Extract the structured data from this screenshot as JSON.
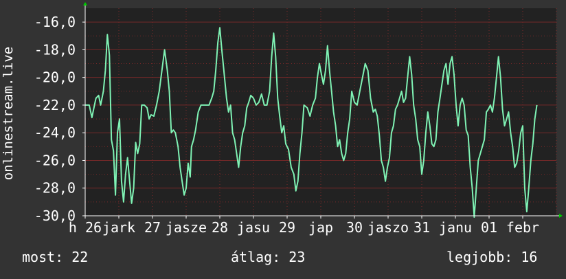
{
  "colors": {
    "background": "#333333",
    "plot_background": "#222222",
    "grid": "#8a2a2a",
    "line": "#7ff2b4",
    "text": "#ffffff",
    "axis_arrow": "#00cc00"
  },
  "chart_data": {
    "type": "line",
    "title": "",
    "ylabel": "onlinestream.live",
    "ylim": [
      -30,
      -15
    ],
    "y_ticks": [
      {
        "value": -16,
        "label": "-16,0"
      },
      {
        "value": -18,
        "label": "-18,0"
      },
      {
        "value": -20,
        "label": "-20,0"
      },
      {
        "value": -22,
        "label": "-22,0"
      },
      {
        "value": -24,
        "label": "-24,0"
      },
      {
        "value": -26,
        "label": "-26,0"
      },
      {
        "value": -28,
        "label": "-28,0"
      },
      {
        "value": -30,
        "label": "-30,0"
      }
    ],
    "x_ticks": [
      {
        "x": 0.0,
        "label": "h 26"
      },
      {
        "x": 0.5,
        "label": "jark"
      },
      {
        "x": 1.0,
        "label": "27"
      },
      {
        "x": 1.5,
        "label": "jasze"
      },
      {
        "x": 2.0,
        "label": "28"
      },
      {
        "x": 2.5,
        "label": "jasu"
      },
      {
        "x": 3.0,
        "label": "29"
      },
      {
        "x": 3.5,
        "label": "jap"
      },
      {
        "x": 4.0,
        "label": "30"
      },
      {
        "x": 4.5,
        "label": "jaszo"
      },
      {
        "x": 5.0,
        "label": "31"
      },
      {
        "x": 5.5,
        "label": "janu"
      },
      {
        "x": 6.0,
        "label": "01"
      },
      {
        "x": 6.5,
        "label": "febr"
      }
    ],
    "xlim": [
      0,
      7.0
    ],
    "grid": true,
    "series": [
      {
        "values": [
          [
            0.0,
            -22.0
          ],
          [
            0.06,
            -22.0
          ],
          [
            0.1,
            -22.9
          ],
          [
            0.13,
            -22.2
          ],
          [
            0.16,
            -21.5
          ],
          [
            0.2,
            -21.3
          ],
          [
            0.23,
            -22.0
          ],
          [
            0.27,
            -21.0
          ],
          [
            0.3,
            -19.5
          ],
          [
            0.33,
            -16.9
          ],
          [
            0.36,
            -18.4
          ],
          [
            0.39,
            -24.5
          ],
          [
            0.42,
            -25.3
          ],
          [
            0.45,
            -28.5
          ],
          [
            0.48,
            -24.0
          ],
          [
            0.51,
            -23.0
          ],
          [
            0.54,
            -27.5
          ],
          [
            0.57,
            -29.0
          ],
          [
            0.6,
            -27.0
          ],
          [
            0.63,
            -25.8
          ],
          [
            0.66,
            -27.5
          ],
          [
            0.69,
            -29.1
          ],
          [
            0.72,
            -28.0
          ],
          [
            0.75,
            -24.7
          ],
          [
            0.78,
            -25.5
          ],
          [
            0.81,
            -24.8
          ],
          [
            0.84,
            -22.0
          ],
          [
            0.88,
            -22.0
          ],
          [
            0.92,
            -22.2
          ],
          [
            0.95,
            -23.0
          ],
          [
            0.98,
            -22.7
          ],
          [
            1.02,
            -22.8
          ],
          [
            1.06,
            -22.0
          ],
          [
            1.1,
            -21.0
          ],
          [
            1.14,
            -19.5
          ],
          [
            1.18,
            -18.0
          ],
          [
            1.22,
            -19.5
          ],
          [
            1.25,
            -21.0
          ],
          [
            1.28,
            -24.0
          ],
          [
            1.31,
            -23.8
          ],
          [
            1.34,
            -24.0
          ],
          [
            1.38,
            -25.0
          ],
          [
            1.41,
            -26.5
          ],
          [
            1.44,
            -27.5
          ],
          [
            1.47,
            -28.5
          ],
          [
            1.5,
            -28.0
          ],
          [
            1.53,
            -26.2
          ],
          [
            1.56,
            -27.2
          ],
          [
            1.58,
            -25.0
          ],
          [
            1.61,
            -24.5
          ],
          [
            1.64,
            -23.8
          ],
          [
            1.68,
            -22.5
          ],
          [
            1.72,
            -22.0
          ],
          [
            1.76,
            -22.0
          ],
          [
            1.8,
            -22.0
          ],
          [
            1.84,
            -22.0
          ],
          [
            1.88,
            -21.5
          ],
          [
            1.91,
            -21.0
          ],
          [
            1.94,
            -19.5
          ],
          [
            1.97,
            -17.5
          ],
          [
            2.0,
            -16.4
          ],
          [
            2.03,
            -18.0
          ],
          [
            2.06,
            -19.5
          ],
          [
            2.1,
            -21.5
          ],
          [
            2.13,
            -22.5
          ],
          [
            2.16,
            -22.0
          ],
          [
            2.19,
            -24.0
          ],
          [
            2.22,
            -24.5
          ],
          [
            2.25,
            -25.5
          ],
          [
            2.28,
            -26.5
          ],
          [
            2.31,
            -25.0
          ],
          [
            2.34,
            -24.0
          ],
          [
            2.37,
            -23.5
          ],
          [
            2.4,
            -22.2
          ],
          [
            2.43,
            -21.8
          ],
          [
            2.46,
            -21.3
          ],
          [
            2.5,
            -21.5
          ],
          [
            2.54,
            -22.0
          ],
          [
            2.58,
            -21.8
          ],
          [
            2.62,
            -21.2
          ],
          [
            2.66,
            -22.0
          ],
          [
            2.7,
            -22.0
          ],
          [
            2.74,
            -21.0
          ],
          [
            2.77,
            -18.5
          ],
          [
            2.8,
            -16.8
          ],
          [
            2.83,
            -18.5
          ],
          [
            2.86,
            -21.5
          ],
          [
            2.89,
            -22.8
          ],
          [
            2.92,
            -24.0
          ],
          [
            2.95,
            -23.5
          ],
          [
            2.98,
            -24.8
          ],
          [
            3.02,
            -25.2
          ],
          [
            3.06,
            -26.5
          ],
          [
            3.1,
            -27.0
          ],
          [
            3.13,
            -28.2
          ],
          [
            3.16,
            -27.5
          ],
          [
            3.19,
            -25.5
          ],
          [
            3.22,
            -24.0
          ],
          [
            3.25,
            -22.0
          ],
          [
            3.3,
            -22.2
          ],
          [
            3.34,
            -22.8
          ],
          [
            3.38,
            -22.0
          ],
          [
            3.42,
            -21.5
          ],
          [
            3.45,
            -20.0
          ],
          [
            3.48,
            -19.0
          ],
          [
            3.51,
            -19.8
          ],
          [
            3.54,
            -20.5
          ],
          [
            3.57,
            -19.5
          ],
          [
            3.6,
            -17.7
          ],
          [
            3.63,
            -19.5
          ],
          [
            3.66,
            -21.0
          ],
          [
            3.69,
            -22.5
          ],
          [
            3.72,
            -23.5
          ],
          [
            3.75,
            -25.0
          ],
          [
            3.78,
            -24.5
          ],
          [
            3.81,
            -25.5
          ],
          [
            3.84,
            -26.0
          ],
          [
            3.87,
            -25.5
          ],
          [
            3.9,
            -24.0
          ],
          [
            3.93,
            -23.0
          ],
          [
            3.96,
            -21.0
          ],
          [
            4.0,
            -21.8
          ],
          [
            4.04,
            -22.0
          ],
          [
            4.08,
            -21.0
          ],
          [
            4.12,
            -20.0
          ],
          [
            4.16,
            -19.0
          ],
          [
            4.2,
            -19.5
          ],
          [
            4.24,
            -21.5
          ],
          [
            4.28,
            -22.5
          ],
          [
            4.31,
            -22.3
          ],
          [
            4.34,
            -22.8
          ],
          [
            4.37,
            -24.2
          ],
          [
            4.4,
            -26.0
          ],
          [
            4.43,
            -26.5
          ],
          [
            4.46,
            -27.5
          ],
          [
            4.49,
            -26.5
          ],
          [
            4.52,
            -25.8
          ],
          [
            4.55,
            -24.0
          ],
          [
            4.58,
            -23.5
          ],
          [
            4.61,
            -22.3
          ],
          [
            4.64,
            -22.0
          ],
          [
            4.67,
            -21.5
          ],
          [
            4.7,
            -21.0
          ],
          [
            4.73,
            -21.8
          ],
          [
            4.76,
            -21.5
          ],
          [
            4.79,
            -20.0
          ],
          [
            4.82,
            -18.5
          ],
          [
            4.85,
            -19.8
          ],
          [
            4.88,
            -22.0
          ],
          [
            4.91,
            -23.0
          ],
          [
            4.94,
            -24.5
          ],
          [
            4.97,
            -25.0
          ],
          [
            5.0,
            -27.0
          ],
          [
            5.03,
            -26.0
          ],
          [
            5.06,
            -24.0
          ],
          [
            5.09,
            -22.5
          ],
          [
            5.12,
            -23.5
          ],
          [
            5.15,
            -24.8
          ],
          [
            5.18,
            -25.0
          ],
          [
            5.21,
            -24.5
          ],
          [
            5.24,
            -22.5
          ],
          [
            5.27,
            -21.5
          ],
          [
            5.3,
            -20.5
          ],
          [
            5.33,
            -19.5
          ],
          [
            5.36,
            -19.0
          ],
          [
            5.39,
            -20.5
          ],
          [
            5.42,
            -19.0
          ],
          [
            5.45,
            -18.5
          ],
          [
            5.48,
            -19.8
          ],
          [
            5.51,
            -22.0
          ],
          [
            5.54,
            -23.5
          ],
          [
            5.57,
            -22.0
          ],
          [
            5.6,
            -21.5
          ],
          [
            5.63,
            -22.0
          ],
          [
            5.66,
            -23.8
          ],
          [
            5.69,
            -24.2
          ],
          [
            5.72,
            -26.5
          ],
          [
            5.75,
            -28.0
          ],
          [
            5.78,
            -30.1
          ],
          [
            5.81,
            -28.0
          ],
          [
            5.84,
            -26.0
          ],
          [
            5.87,
            -25.5
          ],
          [
            5.9,
            -25.0
          ],
          [
            5.93,
            -24.5
          ],
          [
            5.96,
            -22.5
          ],
          [
            5.99,
            -22.3
          ],
          [
            6.02,
            -22.0
          ],
          [
            6.05,
            -22.5
          ],
          [
            6.08,
            -21.5
          ],
          [
            6.11,
            -20.0
          ],
          [
            6.14,
            -18.5
          ],
          [
            6.17,
            -20.0
          ],
          [
            6.2,
            -22.3
          ],
          [
            6.23,
            -23.5
          ],
          [
            6.26,
            -23.0
          ],
          [
            6.29,
            -22.5
          ],
          [
            6.32,
            -24.0
          ],
          [
            6.35,
            -25.0
          ],
          [
            6.38,
            -26.5
          ],
          [
            6.41,
            -26.2
          ],
          [
            6.44,
            -25.3
          ],
          [
            6.47,
            -24.0
          ],
          [
            6.5,
            -23.5
          ],
          [
            6.53,
            -28.0
          ],
          [
            6.56,
            -29.7
          ],
          [
            6.59,
            -28.0
          ],
          [
            6.62,
            -26.0
          ],
          [
            6.65,
            -24.8
          ],
          [
            6.68,
            -23.0
          ],
          [
            6.71,
            -22.0
          ]
        ]
      }
    ]
  },
  "footer": {
    "current": "most: 22",
    "average": "átlag: 23",
    "best": "legjobb: 16"
  }
}
